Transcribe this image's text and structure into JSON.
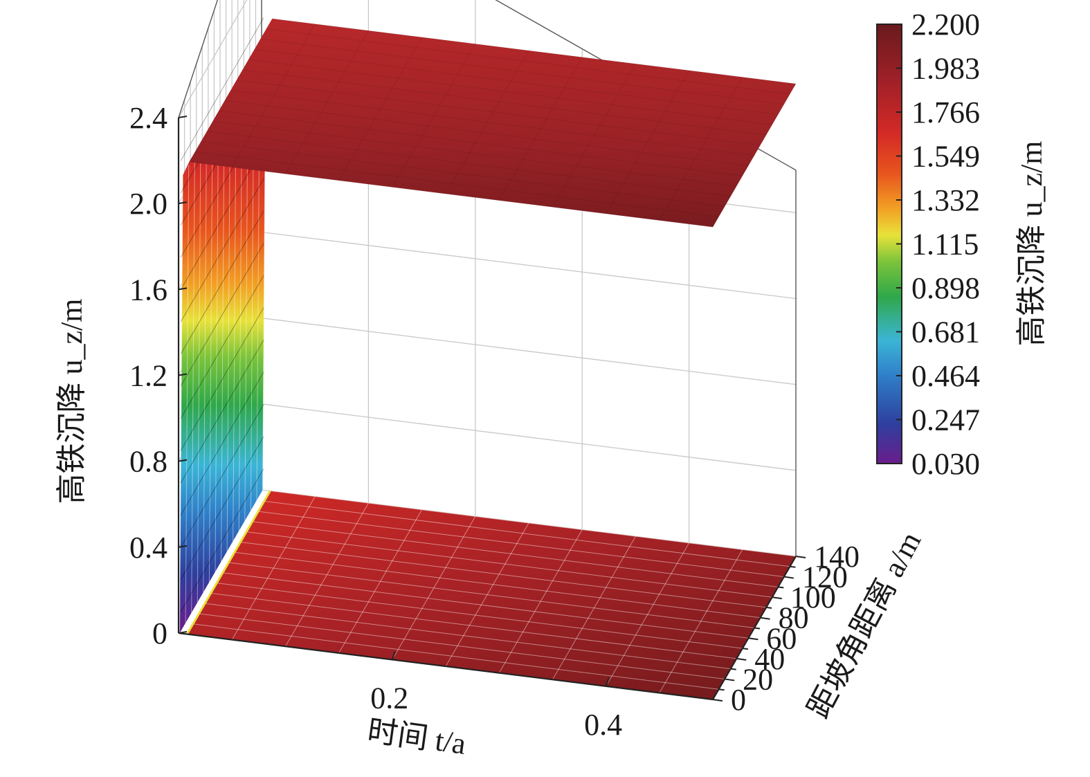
{
  "chart_data": {
    "type": "surface3d",
    "title": "",
    "xlabel": "时间 t/a",
    "ylabel": "距坡角距离 a/m",
    "zlabel": "高铁沉降 u_z/m",
    "x_ticks": [
      "0.2",
      "0.4"
    ],
    "x_range": [
      0,
      0.5
    ],
    "y_ticks": [
      "0",
      "20",
      "40",
      "60",
      "80",
      "100",
      "120",
      "140"
    ],
    "y_range": [
      0,
      140
    ],
    "z_ticks": [
      "0",
      "0.4",
      "0.8",
      "1.2",
      "1.6",
      "2.0",
      "2.4"
    ],
    "z_range": [
      0,
      2.4
    ],
    "surface_summary": {
      "rise_time": 0.02,
      "plateau_value": 2.2,
      "min_value": 0.03
    },
    "colorbar": {
      "label": "高铁沉降 u_z/m",
      "ticks": [
        "2.200",
        "1.983",
        "1.766",
        "1.549",
        "1.332",
        "1.115",
        "0.898",
        "0.681",
        "0.464",
        "0.247",
        "0.030"
      ],
      "min": 0.03,
      "max": 2.2,
      "colormap": [
        "#6b1c8c",
        "#2e3f9e",
        "#2f7fc8",
        "#3bb5d6",
        "#2fa84a",
        "#7cc43a",
        "#e8e23a",
        "#f2a024",
        "#e8551e",
        "#d42a26",
        "#a02028",
        "#6a1a1e"
      ]
    },
    "grid": true,
    "legend": "colorbar-right"
  }
}
